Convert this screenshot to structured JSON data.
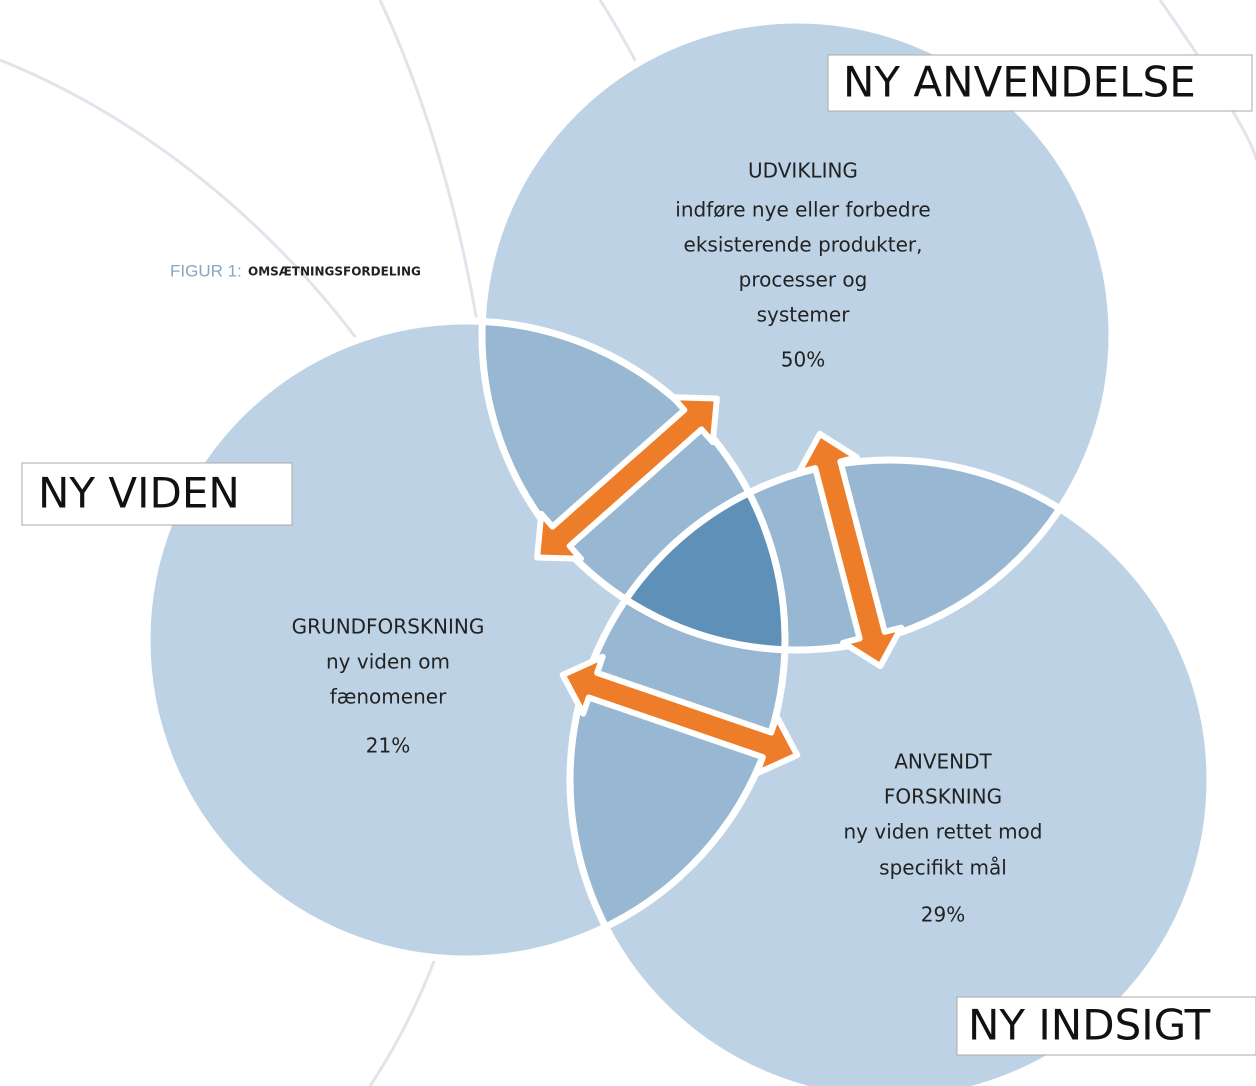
{
  "figure": {
    "label": "FIGUR 1:",
    "title": "OMSÆTNINGSFORDELING"
  },
  "circles": [
    {
      "box": "NY ANVENDELSE",
      "heading": [
        "UDVIKLING"
      ],
      "description": [
        "indføre nye eller forbedre",
        "eksisterende produkter,",
        "processer og",
        "systemer"
      ],
      "share": "50%"
    },
    {
      "box": "NY VIDEN",
      "heading": [
        "GRUNDFORSKNING"
      ],
      "description": [
        "ny viden om",
        "fænomener"
      ],
      "share": "21%"
    },
    {
      "box": "NY INDSIGT",
      "heading": [
        "ANVENDT",
        "FORSKNING"
      ],
      "description": [
        "ny viden rettet mod",
        "specifikt mål"
      ],
      "share": "29%"
    }
  ]
}
